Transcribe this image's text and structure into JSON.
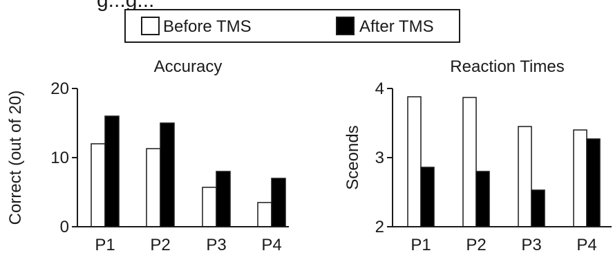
{
  "figure": {
    "cut_heading": "g...g..."
  },
  "legend": [
    {
      "label": "Before TMS",
      "fill": "#ffffff"
    },
    {
      "label": "After TMS",
      "fill": "#000000"
    }
  ],
  "chart_data": [
    {
      "type": "bar",
      "title": "Accuracy",
      "ylabel": "Correct (out of 20)",
      "xlabel": "",
      "categories": [
        "P1",
        "P2",
        "P3",
        "P4"
      ],
      "series": [
        {
          "name": "Before TMS",
          "values": [
            12,
            11.3,
            5.7,
            3.5
          ],
          "color": "#ffffff"
        },
        {
          "name": "After TMS",
          "values": [
            16,
            15,
            8,
            7
          ],
          "color": "#000000"
        }
      ],
      "ylim": [
        0,
        20
      ],
      "yticks": [
        0,
        10,
        20
      ],
      "grid": false,
      "legend": "top-center"
    },
    {
      "type": "bar",
      "title": "Reaction Times",
      "ylabel": "Sceonds",
      "xlabel": "",
      "categories": [
        "P1",
        "P2",
        "P3",
        "P4"
      ],
      "series": [
        {
          "name": "Before TMS",
          "values": [
            3.88,
            3.87,
            3.45,
            3.4
          ],
          "color": "#ffffff"
        },
        {
          "name": "After TMS",
          "values": [
            2.86,
            2.8,
            2.53,
            3.27
          ],
          "color": "#000000"
        }
      ],
      "ylim": [
        2,
        4
      ],
      "yticks": [
        2,
        3,
        4
      ],
      "grid": false,
      "legend": "top-center"
    }
  ]
}
